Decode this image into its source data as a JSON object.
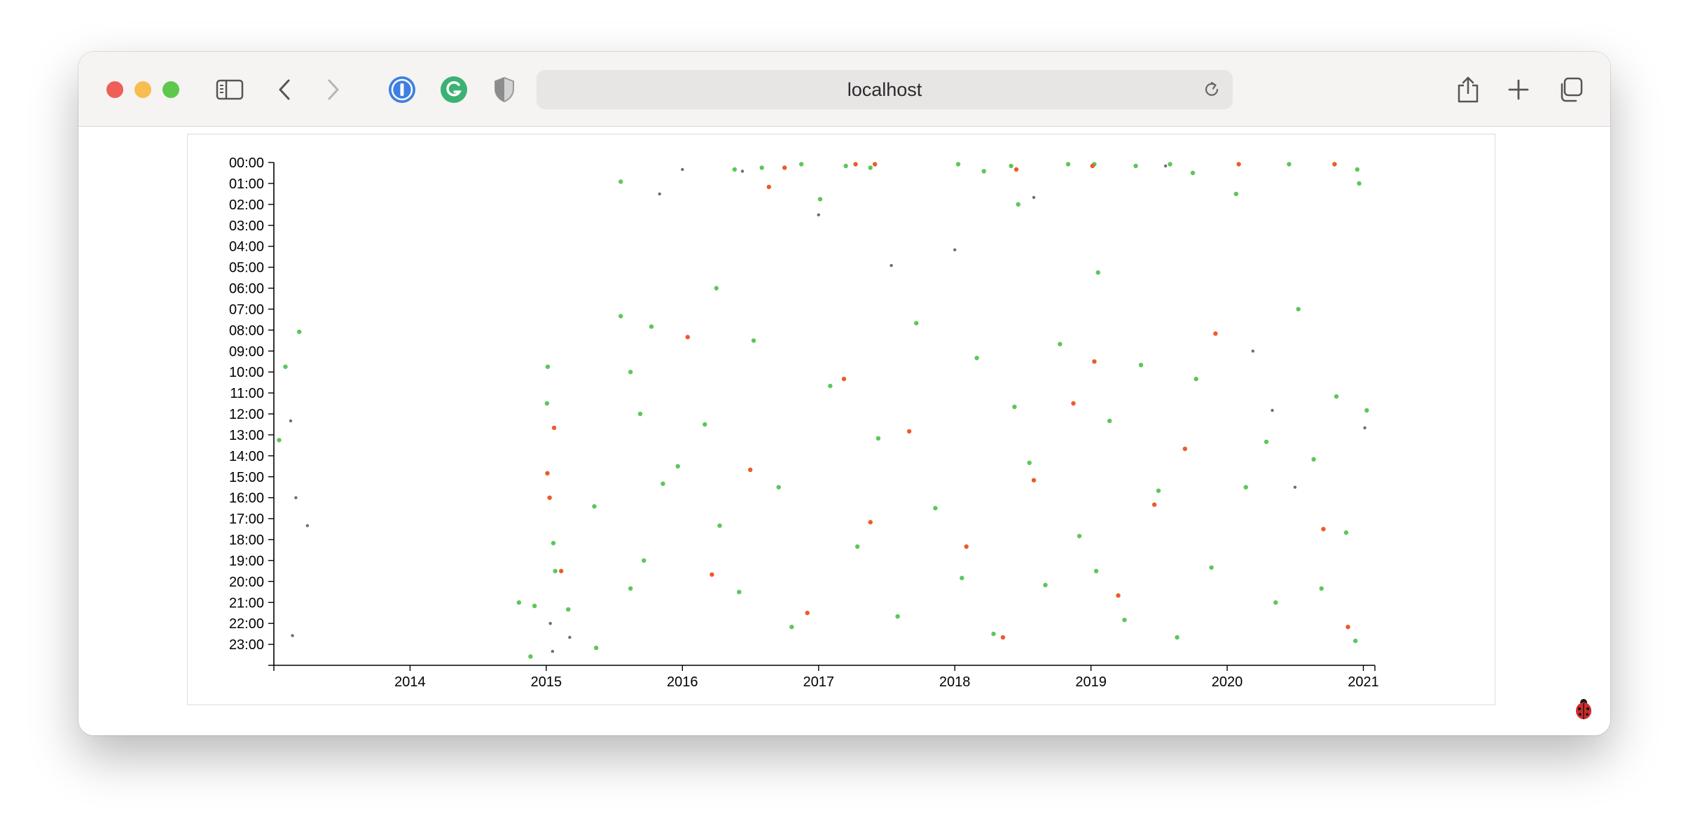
{
  "browser": {
    "address": "localhost"
  },
  "icons": {
    "traffic_lights": [
      "close-icon",
      "minimize-icon",
      "zoom-icon"
    ],
    "toolbar_left": [
      "sidebar-icon",
      "back-icon",
      "forward-icon",
      "1password-icon",
      "grammarly-icon",
      "privacy-shield-icon"
    ],
    "toolbar_right": [
      "share-icon",
      "new-tab-icon",
      "tabs-overview-icon"
    ],
    "page": [
      "ladybug-icon"
    ]
  },
  "colors": {
    "green": "#5cc75a",
    "orange": "#ee5a2b",
    "gray": "#6e6e6e"
  },
  "chart_data": {
    "type": "scatter",
    "title": "",
    "xlabel": "",
    "ylabel": "",
    "x_ticks": [
      "2014",
      "2015",
      "2016",
      "2017",
      "2018",
      "2019",
      "2020",
      "2021"
    ],
    "x_range": [
      "2013-01-01",
      "2021-02-01"
    ],
    "y_ticks": [
      "00:00",
      "01:00",
      "02:00",
      "03:00",
      "04:00",
      "05:00",
      "06:00",
      "07:00",
      "08:00",
      "09:00",
      "10:00",
      "11:00",
      "12:00",
      "13:00",
      "14:00",
      "15:00",
      "16:00",
      "17:00",
      "18:00",
      "19:00",
      "20:00",
      "21:00",
      "22:00",
      "23:00"
    ],
    "y_range": [
      "00:00",
      "24:00"
    ],
    "y_axis_inverted": true,
    "grid": false,
    "legend": "none",
    "series": [
      {
        "color": "#5cc75a",
        "points": [
          [
            "2013-01-15",
            "13:15"
          ],
          [
            "2013-02-01",
            "09:45"
          ],
          [
            "2013-03-10",
            "08:05"
          ],
          [
            "2014-10-20",
            "21:00"
          ],
          [
            "2014-12-01",
            "21:10"
          ],
          [
            "2014-11-20",
            "23:35"
          ],
          [
            "2015-01-05",
            "09:45"
          ],
          [
            "2015-01-03",
            "11:30"
          ],
          [
            "2015-01-20",
            "18:10"
          ],
          [
            "2015-01-25",
            "19:30"
          ],
          [
            "2015-03-01",
            "21:20"
          ],
          [
            "2015-05-10",
            "16:25"
          ],
          [
            "2015-05-15",
            "23:10"
          ],
          [
            "2015-07-20",
            "00:55"
          ],
          [
            "2015-07-20",
            "07:20"
          ],
          [
            "2015-08-15",
            "10:00"
          ],
          [
            "2015-08-15",
            "20:20"
          ],
          [
            "2015-09-10",
            "12:00"
          ],
          [
            "2015-09-20",
            "19:00"
          ],
          [
            "2015-10-10",
            "07:50"
          ],
          [
            "2015-11-10",
            "15:20"
          ],
          [
            "2015-12-20",
            "14:30"
          ],
          [
            "2016-04-01",
            "06:00"
          ],
          [
            "2016-05-20",
            "00:20"
          ],
          [
            "2016-08-01",
            "00:15"
          ],
          [
            "2016-11-15",
            "00:05"
          ],
          [
            "2017-01-05",
            "01:45"
          ],
          [
            "2017-03-15",
            "00:10"
          ],
          [
            "2017-05-20",
            "00:15"
          ],
          [
            "2018-01-10",
            "00:05"
          ],
          [
            "2018-03-20",
            "00:25"
          ],
          [
            "2018-06-01",
            "00:10"
          ],
          [
            "2018-06-20",
            "02:00"
          ],
          [
            "2018-11-01",
            "00:05"
          ],
          [
            "2019-01-10",
            "00:05"
          ],
          [
            "2019-01-20",
            "05:15"
          ],
          [
            "2019-05-01",
            "00:10"
          ],
          [
            "2019-08-01",
            "00:05"
          ],
          [
            "2019-10-01",
            "00:30"
          ],
          [
            "2020-01-25",
            "01:30"
          ],
          [
            "2020-06-15",
            "00:05"
          ],
          [
            "2020-12-15",
            "00:20"
          ],
          [
            "2020-12-20",
            "01:00"
          ],
          [
            "2016-03-01",
            "12:30"
          ],
          [
            "2016-04-10",
            "17:20"
          ],
          [
            "2016-06-01",
            "20:30"
          ],
          [
            "2016-07-10",
            "08:30"
          ],
          [
            "2016-09-15",
            "15:30"
          ],
          [
            "2016-10-20",
            "22:10"
          ],
          [
            "2017-02-01",
            "10:40"
          ],
          [
            "2017-04-15",
            "18:20"
          ],
          [
            "2017-06-10",
            "13:10"
          ],
          [
            "2017-08-01",
            "21:40"
          ],
          [
            "2017-09-20",
            "07:40"
          ],
          [
            "2017-11-10",
            "16:30"
          ],
          [
            "2018-01-20",
            "19:50"
          ],
          [
            "2018-03-01",
            "09:20"
          ],
          [
            "2018-04-15",
            "22:30"
          ],
          [
            "2018-06-10",
            "11:40"
          ],
          [
            "2018-07-20",
            "14:20"
          ],
          [
            "2018-09-01",
            "20:10"
          ],
          [
            "2018-10-10",
            "08:40"
          ],
          [
            "2018-12-01",
            "17:50"
          ],
          [
            "2019-01-15",
            "19:30"
          ],
          [
            "2019-02-20",
            "12:20"
          ],
          [
            "2019-04-01",
            "21:50"
          ],
          [
            "2019-05-15",
            "09:40"
          ],
          [
            "2019-07-01",
            "15:40"
          ],
          [
            "2019-08-20",
            "22:40"
          ],
          [
            "2019-10-10",
            "10:20"
          ],
          [
            "2019-11-20",
            "19:20"
          ],
          [
            "2020-02-20",
            "15:30"
          ],
          [
            "2020-04-15",
            "13:20"
          ],
          [
            "2020-05-10",
            "21:00"
          ],
          [
            "2020-07-10",
            "07:00"
          ],
          [
            "2020-08-20",
            "14:10"
          ],
          [
            "2020-09-10",
            "20:20"
          ],
          [
            "2020-10-20",
            "11:10"
          ],
          [
            "2020-11-15",
            "17:40"
          ],
          [
            "2020-12-10",
            "22:50"
          ],
          [
            "2021-01-10",
            "11:50"
          ]
        ]
      },
      {
        "color": "#ee5a2b",
        "points": [
          [
            "2015-01-04",
            "14:50"
          ],
          [
            "2015-01-10",
            "16:00"
          ],
          [
            "2015-01-22",
            "12:40"
          ],
          [
            "2015-02-10",
            "19:30"
          ],
          [
            "2016-08-20",
            "01:10"
          ],
          [
            "2016-10-01",
            "00:15"
          ],
          [
            "2017-04-10",
            "00:05"
          ],
          [
            "2017-06-01",
            "00:05"
          ],
          [
            "2018-06-15",
            "00:20"
          ],
          [
            "2019-01-05",
            "00:10"
          ],
          [
            "2020-02-01",
            "00:05"
          ],
          [
            "2020-10-15",
            "00:05"
          ],
          [
            "2016-01-15",
            "08:20"
          ],
          [
            "2016-03-20",
            "19:40"
          ],
          [
            "2016-07-01",
            "14:40"
          ],
          [
            "2016-12-01",
            "21:30"
          ],
          [
            "2017-03-10",
            "10:20"
          ],
          [
            "2017-05-20",
            "17:10"
          ],
          [
            "2017-09-01",
            "12:50"
          ],
          [
            "2018-02-01",
            "18:20"
          ],
          [
            "2018-05-10",
            "22:40"
          ],
          [
            "2018-08-01",
            "15:10"
          ],
          [
            "2018-11-15",
            "11:30"
          ],
          [
            "2019-01-10",
            "09:30"
          ],
          [
            "2019-03-15",
            "20:40"
          ],
          [
            "2019-06-20",
            "16:20"
          ],
          [
            "2019-09-10",
            "13:40"
          ],
          [
            "2019-12-01",
            "08:10"
          ],
          [
            "2020-09-15",
            "17:30"
          ],
          [
            "2020-11-20",
            "22:10"
          ]
        ]
      },
      {
        "color": "#6e6e6e",
        "points": [
          [
            "2013-02-15",
            "12:20"
          ],
          [
            "2013-03-01",
            "16:00"
          ],
          [
            "2013-04-01",
            "17:20"
          ],
          [
            "2013-02-20",
            "22:35"
          ],
          [
            "2015-01-12",
            "22:00"
          ],
          [
            "2015-01-18",
            "23:20"
          ],
          [
            "2015-03-05",
            "22:40"
          ],
          [
            "2015-11-01",
            "01:30"
          ],
          [
            "2016-01-01",
            "00:20"
          ],
          [
            "2016-06-10",
            "00:25"
          ],
          [
            "2017-01-01",
            "02:30"
          ],
          [
            "2017-07-15",
            "04:55"
          ],
          [
            "2018-01-01",
            "04:10"
          ],
          [
            "2018-08-01",
            "01:40"
          ],
          [
            "2019-07-20",
            "00:10"
          ],
          [
            "2020-03-10",
            "09:00"
          ],
          [
            "2020-05-01",
            "11:50"
          ],
          [
            "2020-07-01",
            "15:30"
          ],
          [
            "2021-01-05",
            "12:40"
          ]
        ]
      }
    ]
  }
}
